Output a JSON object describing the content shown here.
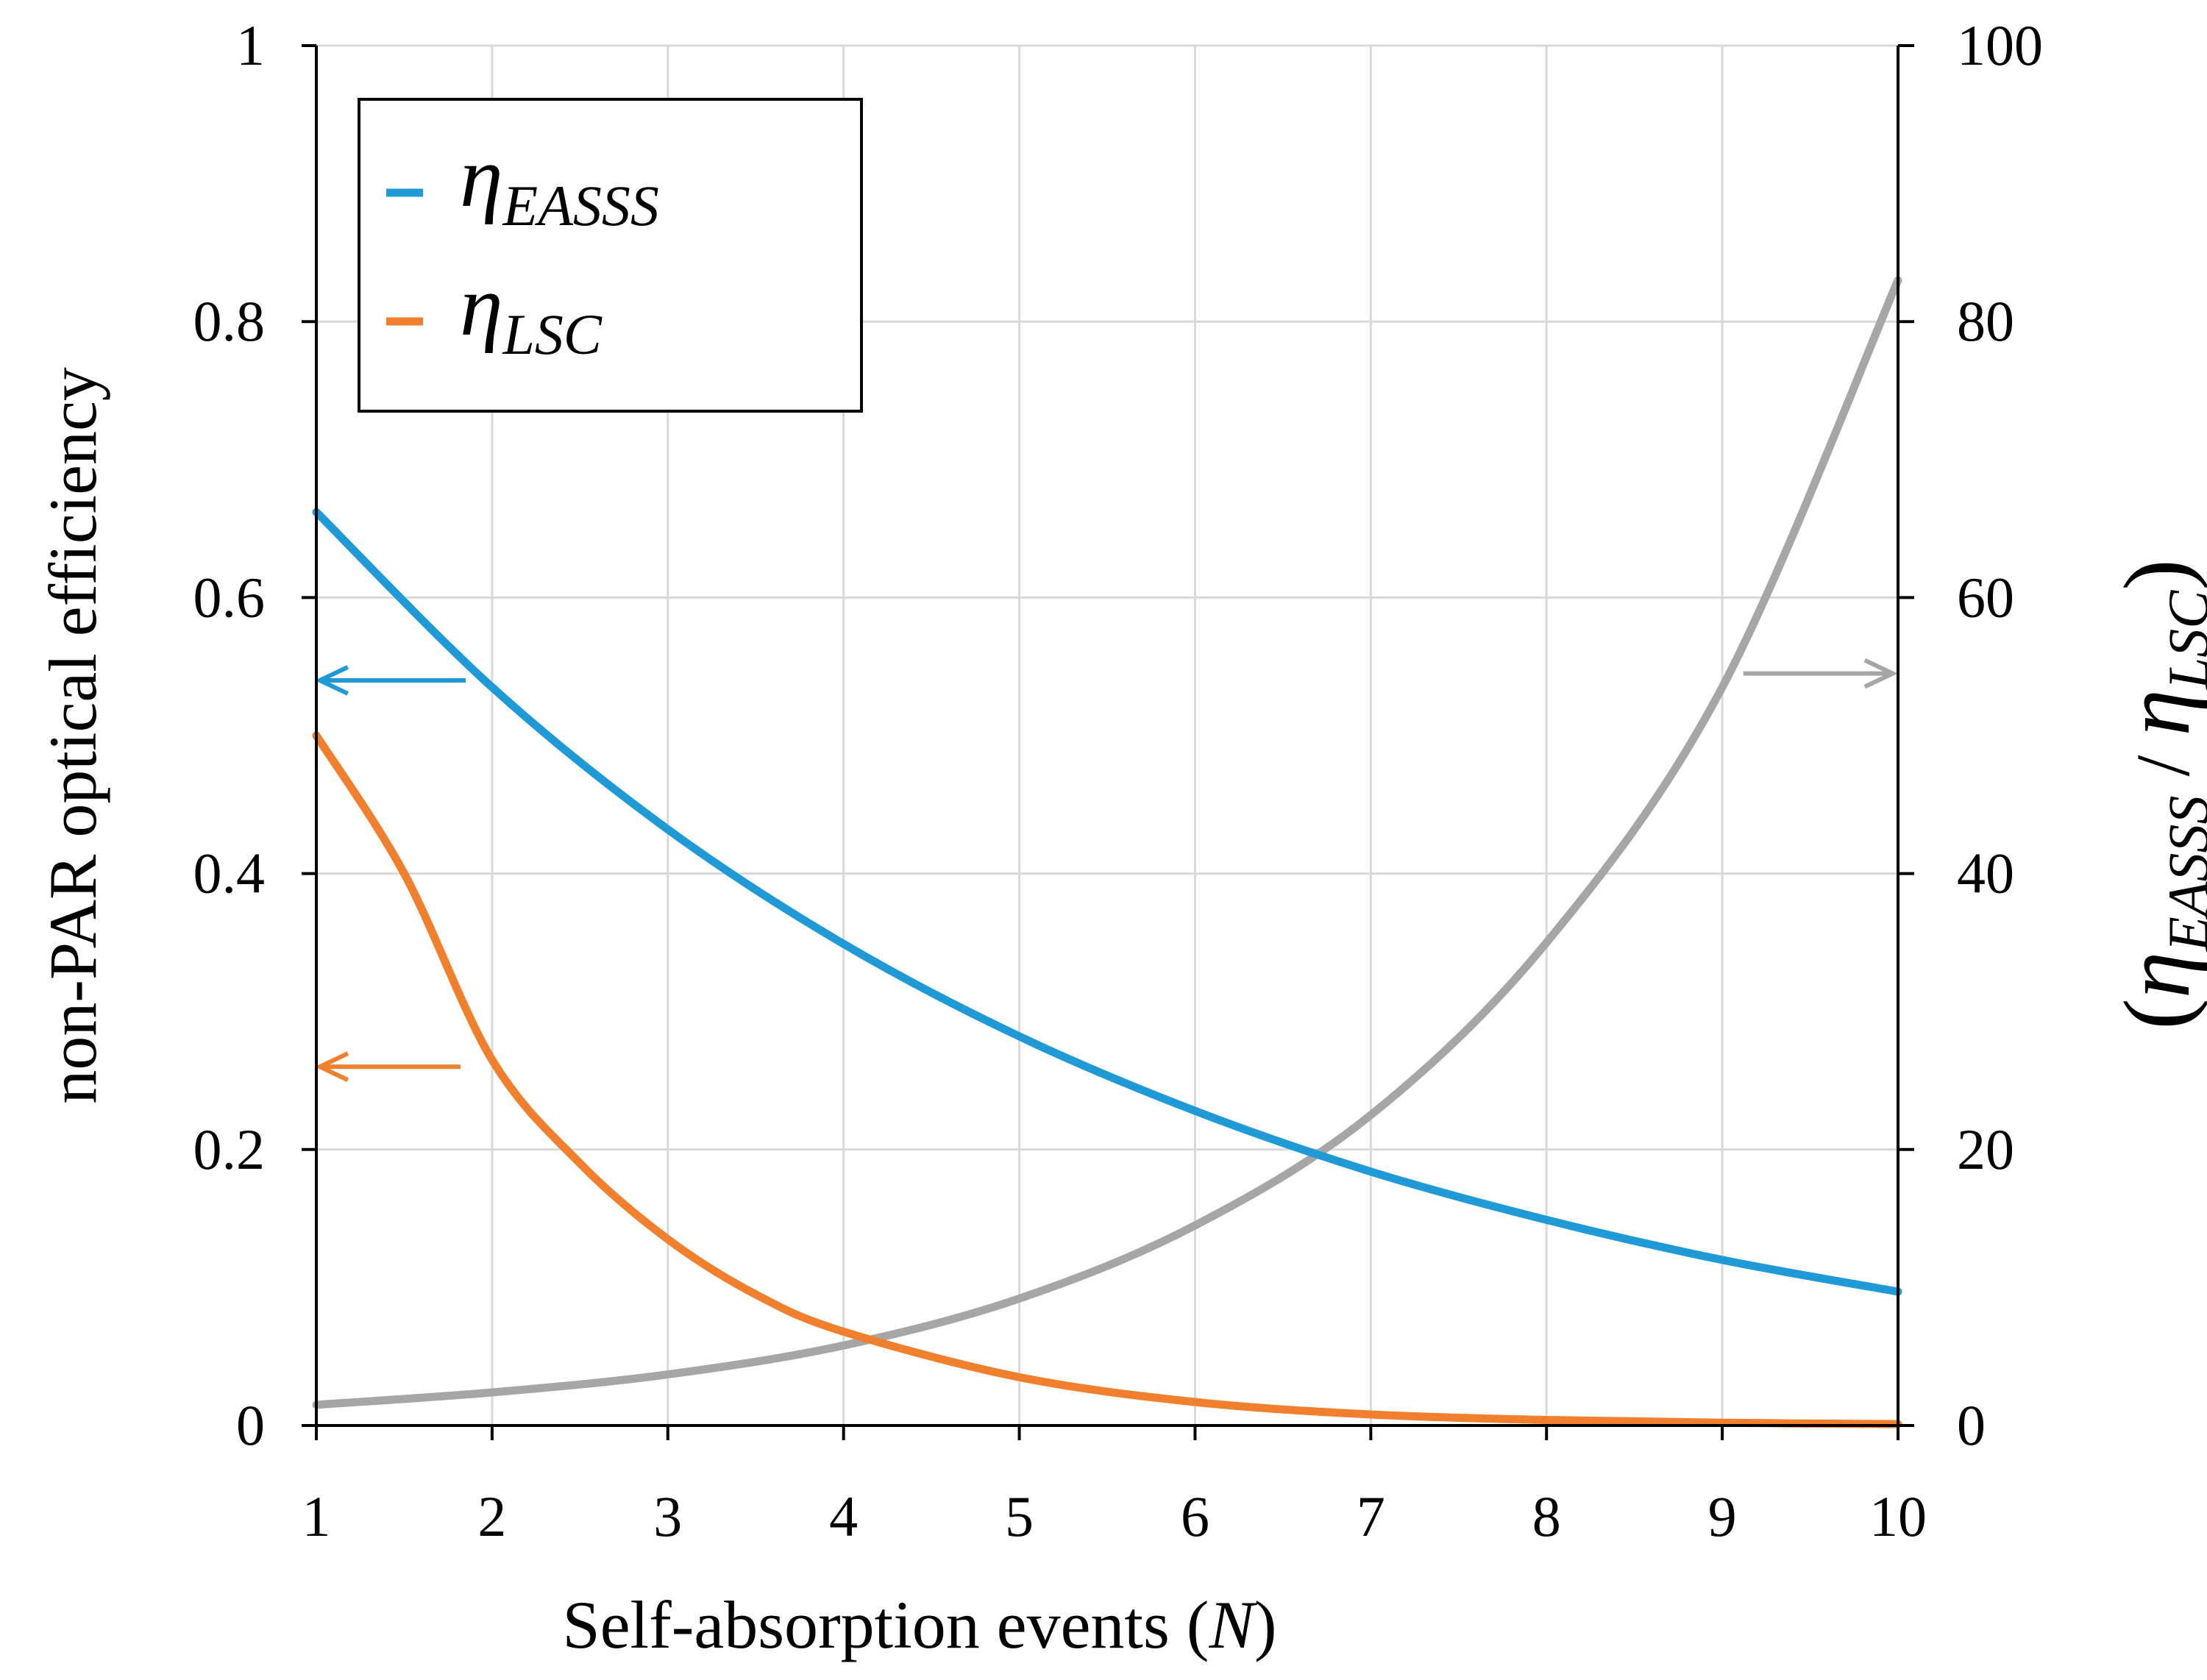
{
  "chart_data": {
    "type": "line",
    "xlabel": "Self-absorption events (N)",
    "xlabel_parts": {
      "text": "Self-absorption events (",
      "var": "N",
      "close": ")"
    },
    "ylabel": "non-PAR optical efficiency",
    "ylabel_right": {
      "open": "(",
      "eta1": "η",
      "sub1": "EASSS",
      "slash": " / ",
      "eta2": "η",
      "sub2": "LSC",
      "close": ")"
    },
    "xlim": [
      1,
      10
    ],
    "ylim": [
      0,
      1
    ],
    "ylim_right": [
      0,
      100
    ],
    "xticks": [
      "1",
      "2",
      "3",
      "4",
      "5",
      "6",
      "7",
      "8",
      "9",
      "10"
    ],
    "yticks_left": [
      "0",
      "0.2",
      "0.4",
      "0.6",
      "0.8",
      "1"
    ],
    "yticks_right": [
      "0",
      "20",
      "40",
      "60",
      "80",
      "100"
    ],
    "grid": true,
    "legend_position": "top-left",
    "series": [
      {
        "key": "eassss",
        "name": "η_EASSS",
        "legend": {
          "symbol": "η",
          "sub": "EASSS"
        },
        "axis": "left",
        "color": "#1f9ad6",
        "x": [
          1,
          2,
          3,
          4,
          5,
          6,
          7,
          8,
          9,
          10
        ],
        "y": [
          0.662,
          0.535,
          0.432,
          0.349,
          0.282,
          0.228,
          0.184,
          0.149,
          0.12,
          0.097
        ]
      },
      {
        "key": "lsc",
        "name": "η_LSC",
        "legend": {
          "symbol": "η",
          "sub": "LSC"
        },
        "axis": "left",
        "color": "#f07f2e",
        "x": [
          1,
          1.5,
          2,
          2.5,
          3,
          3.5,
          4,
          5,
          6,
          7,
          8,
          9,
          10
        ],
        "y": [
          0.5,
          0.4,
          0.265,
          0.19,
          0.135,
          0.095,
          0.068,
          0.035,
          0.017,
          0.008,
          0.004,
          0.002,
          0.001
        ]
      },
      {
        "key": "ratio",
        "axis": "right",
        "color": "#a6a6a6",
        "x": [
          1,
          2,
          3,
          4,
          5,
          6,
          7,
          8,
          9,
          10
        ],
        "y": [
          1.5,
          2.4,
          3.7,
          5.8,
          9.2,
          14.5,
          22.5,
          35.0,
          53.5,
          83.0
        ]
      }
    ],
    "annotations": [
      {
        "type": "arrow",
        "direction": "left",
        "points_to_axis": "left",
        "color": "#1f9ad6",
        "y": 0.54,
        "x_from": 1.85,
        "x_to": 1.02
      },
      {
        "type": "arrow",
        "direction": "left",
        "points_to_axis": "left",
        "color": "#f07f2e",
        "y": 0.26,
        "x_from": 1.82,
        "x_to": 1.02
      },
      {
        "type": "arrow",
        "direction": "right",
        "points_to_axis": "right",
        "color": "#a6a6a6",
        "y_right": 54.5,
        "x_from": 9.12,
        "x_to": 9.97
      }
    ]
  }
}
